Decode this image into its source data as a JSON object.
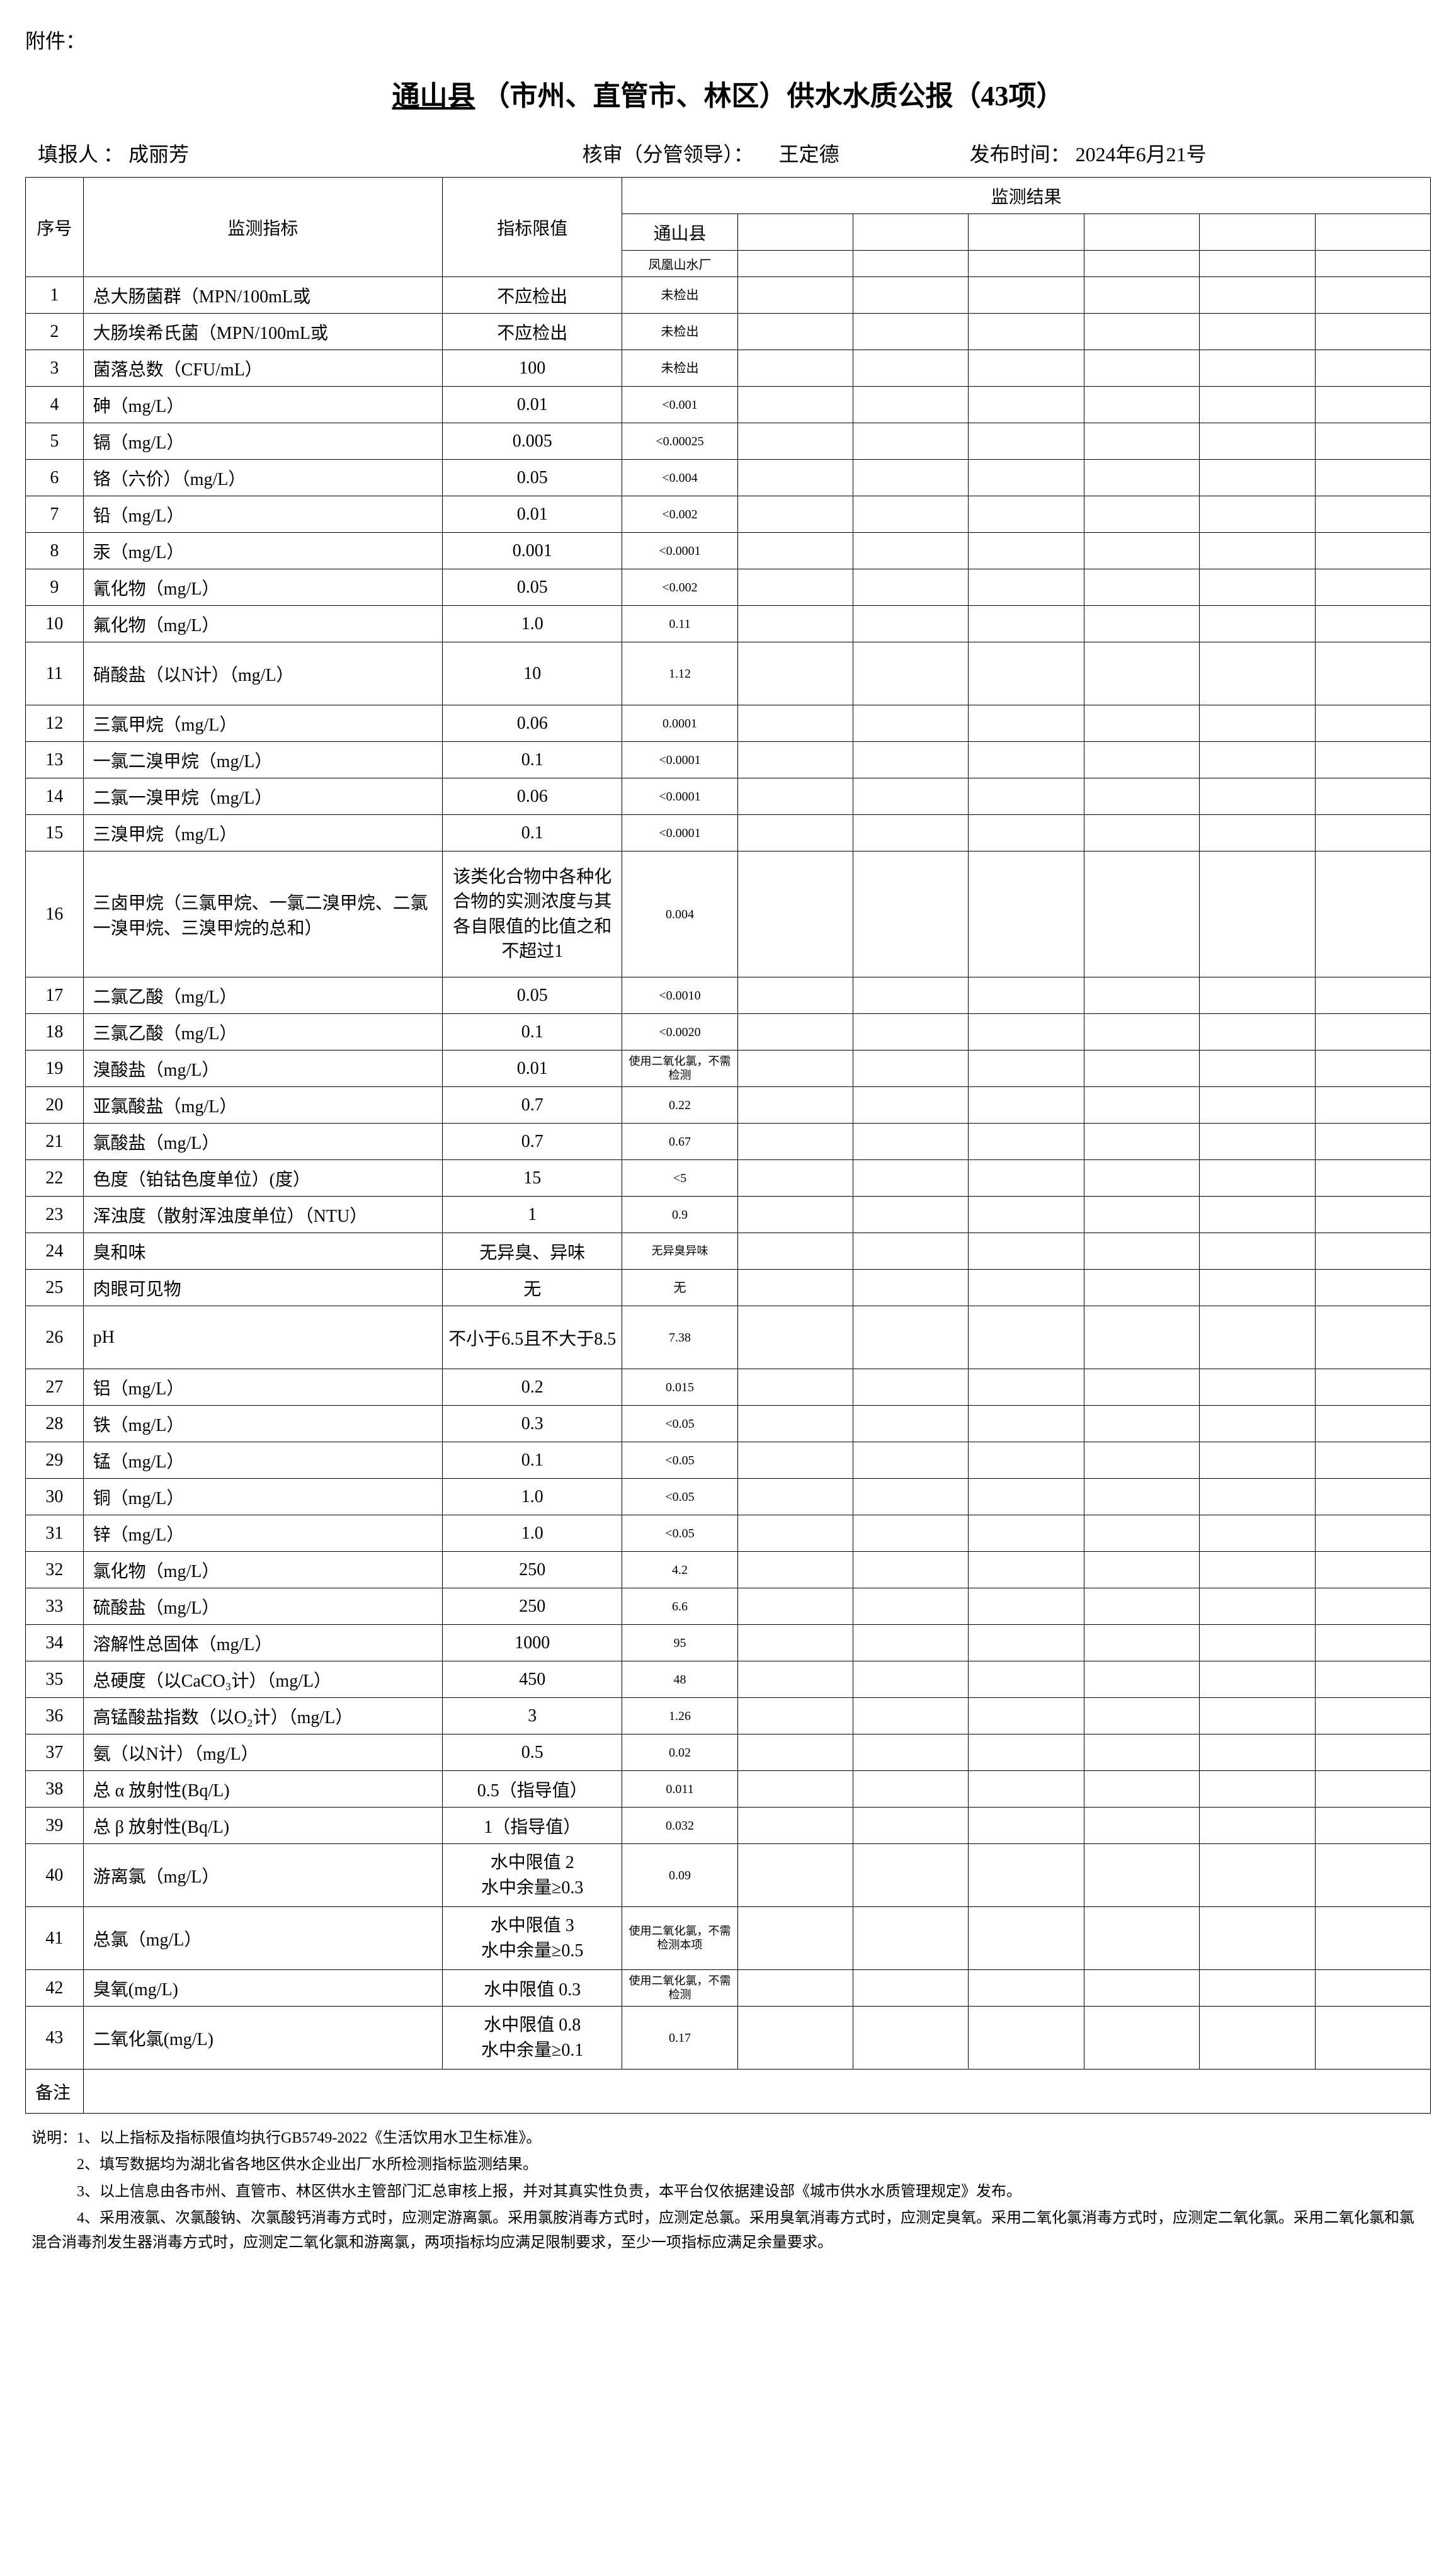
{
  "attachment_label": "附件：",
  "title_prefix": "通山县",
  "title_middle": "（市州、直管市、林区）供水水质公报（43项）",
  "meta": {
    "reporter_label": "填报人 ：",
    "reporter_name": "成丽芳",
    "auditor_label": "核审（分管领导）：",
    "auditor_name": "王定德",
    "pubtime_label": "发布时间：",
    "pubtime_value": "2024年6月21号"
  },
  "headers": {
    "seq": "序号",
    "indicator": "监测指标",
    "limit": "指标限值",
    "result": "监测结果",
    "county": "通山县",
    "plant": "凤凰山水厂"
  },
  "rows": [
    {
      "seq": "1",
      "indicator": "总大肠菌群（MPN/100mL或",
      "limit": "不应检出",
      "result": "未检出"
    },
    {
      "seq": "2",
      "indicator": "大肠埃希氏菌（MPN/100mL或",
      "limit": "不应检出",
      "result": "未检出"
    },
    {
      "seq": "3",
      "indicator": "菌落总数（CFU/mL）",
      "limit": "100",
      "result": "未检出"
    },
    {
      "seq": "4",
      "indicator": "砷（mg/L）",
      "limit": "0.01",
      "result": "<0.001"
    },
    {
      "seq": "5",
      "indicator": "镉（mg/L）",
      "limit": "0.005",
      "result": "<0.00025"
    },
    {
      "seq": "6",
      "indicator": "铬（六价）（mg/L）",
      "limit": "0.05",
      "result": "<0.004"
    },
    {
      "seq": "7",
      "indicator": "铅（mg/L）",
      "limit": "0.01",
      "result": "<0.002"
    },
    {
      "seq": "8",
      "indicator": "汞（mg/L）",
      "limit": "0.001",
      "result": "<0.0001"
    },
    {
      "seq": "9",
      "indicator": "氰化物（mg/L）",
      "limit": "0.05",
      "result": "<0.002"
    },
    {
      "seq": "10",
      "indicator": "氟化物（mg/L）",
      "limit": "1.0",
      "result": "0.11"
    },
    {
      "seq": "11",
      "indicator": "硝酸盐（以N计）（mg/L）",
      "limit": "10",
      "result": "1.12",
      "tall": "med"
    },
    {
      "seq": "12",
      "indicator": "三氯甲烷（mg/L）",
      "limit": "0.06",
      "result": "0.0001"
    },
    {
      "seq": "13",
      "indicator": "一氯二溴甲烷（mg/L）",
      "limit": "0.1",
      "result": "<0.0001"
    },
    {
      "seq": "14",
      "indicator": "二氯一溴甲烷（mg/L）",
      "limit": "0.06",
      "result": "<0.0001"
    },
    {
      "seq": "15",
      "indicator": "三溴甲烷（mg/L）",
      "limit": "0.1",
      "result": "<0.0001"
    },
    {
      "seq": "16",
      "indicator": "三卤甲烷（三氯甲烷、一氯二溴甲烷、二氯一溴甲烷、三溴甲烷的总和）",
      "limit": "该类化合物中各种化合物的实测浓度与其各自限值的比值之和不超过1",
      "result": "0.004",
      "tall": "tall"
    },
    {
      "seq": "17",
      "indicator": "二氯乙酸（mg/L）",
      "limit": "0.05",
      "result": "<0.0010"
    },
    {
      "seq": "18",
      "indicator": "三氯乙酸（mg/L）",
      "limit": "0.1",
      "result": "<0.0020"
    },
    {
      "seq": "19",
      "indicator": "溴酸盐（mg/L）",
      "limit": "0.01",
      "result": "使用二氧化氯，不需检测",
      "resultSmall": true
    },
    {
      "seq": "20",
      "indicator": "亚氯酸盐（mg/L）",
      "limit": "0.7",
      "result": "0.22"
    },
    {
      "seq": "21",
      "indicator": "氯酸盐（mg/L）",
      "limit": "0.7",
      "result": "0.67"
    },
    {
      "seq": "22",
      "indicator": "色度（铂钴色度单位）(度）",
      "limit": "15",
      "result": "<5"
    },
    {
      "seq": "23",
      "indicator": "浑浊度（散射浑浊度单位）（NTU）",
      "limit": "1",
      "result": "0.9"
    },
    {
      "seq": "24",
      "indicator": "臭和味",
      "limit": "无异臭、异味",
      "result": "无异臭异味",
      "resultSmall": true
    },
    {
      "seq": "25",
      "indicator": "肉眼可见物",
      "limit": "无",
      "result": "无"
    },
    {
      "seq": "26",
      "indicator": "pH",
      "limit": "不小于6.5且不大于8.5",
      "result": "7.38",
      "tall": "med"
    },
    {
      "seq": "27",
      "indicator": "铝（mg/L）",
      "limit": "0.2",
      "result": "0.015"
    },
    {
      "seq": "28",
      "indicator": "铁（mg/L）",
      "limit": "0.3",
      "result": "<0.05"
    },
    {
      "seq": "29",
      "indicator": "锰（mg/L）",
      "limit": "0.1",
      "result": "<0.05"
    },
    {
      "seq": "30",
      "indicator": "铜（mg/L）",
      "limit": "1.0",
      "result": "<0.05"
    },
    {
      "seq": "31",
      "indicator": "锌（mg/L）",
      "limit": "1.0",
      "result": "<0.05"
    },
    {
      "seq": "32",
      "indicator": "氯化物（mg/L）",
      "limit": "250",
      "result": "4.2"
    },
    {
      "seq": "33",
      "indicator": "硫酸盐（mg/L）",
      "limit": "250",
      "result": "6.6"
    },
    {
      "seq": "34",
      "indicator": "溶解性总固体（mg/L）",
      "limit": "1000",
      "result": "95"
    },
    {
      "seq": "35",
      "indicator": "总硬度（以CaCO₃计）（mg/L）",
      "limit": "450",
      "result": "48"
    },
    {
      "seq": "36",
      "indicator": "高锰酸盐指数（以O₂计）（mg/L）",
      "limit": "3",
      "result": "1.26"
    },
    {
      "seq": "37",
      "indicator": "氨（以N计）（mg/L）",
      "limit": "0.5",
      "result": "0.02"
    },
    {
      "seq": "38",
      "indicator": "总 α 放射性(Bq/L)",
      "limit": "0.5（指导值）",
      "result": "0.011"
    },
    {
      "seq": "39",
      "indicator": "总 β 放射性(Bq/L)",
      "limit": "1（指导值）",
      "result": "0.032"
    },
    {
      "seq": "40",
      "indicator": "游离氯（mg/L）",
      "limit": "水中限值 2\n水中余量≥0.3",
      "result": "0.09",
      "tall": "med"
    },
    {
      "seq": "41",
      "indicator": "总氯（mg/L）",
      "limit": "水中限值 3\n水中余量≥0.5",
      "result": "使用二氧化氯，不需检测本项",
      "resultSmall": true,
      "tall": "med"
    },
    {
      "seq": "42",
      "indicator": "臭氧(mg/L)",
      "limit": "水中限值 0.3",
      "result": "使用二氧化氯，不需检测",
      "resultSmall": true
    },
    {
      "seq": "43",
      "indicator": "二氧化氯(mg/L)",
      "limit": "水中限值 0.8\n水中余量≥0.1",
      "result": "0.17",
      "tall": "med"
    }
  ],
  "remark_label": "备注",
  "notes": [
    "说明：1、以上指标及指标限值均执行GB5749-2022《生活饮用水卫生标准》。",
    "　　　2、填写数据均为湖北省各地区供水企业出厂水所检测指标监测结果。",
    "　　　3、以上信息由各市州、直管市、林区供水主管部门汇总审核上报，并对其真实性负责，本平台仅依据建设部《城市供水水质管理规定》发布。",
    "　　　4、采用液氯、次氯酸钠、次氯酸钙消毒方式时，应测定游离氯。采用氯胺消毒方式时，应测定总氯。采用臭氧消毒方式时，应测定臭氧。采用二氧化氯消毒方式时，应测定二氧化氯。采用二氧化氯和氯混合消毒剂发生器消毒方式时，应测定二氧化氯和游离氯，两项指标均应满足限制要求，至少一项指标应满足余量要求。"
  ]
}
